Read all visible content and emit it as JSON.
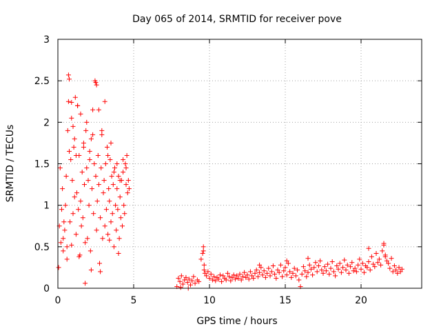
{
  "chart_data": {
    "type": "scatter",
    "title": "Day 065 of 2014, SRMTID for receiver pove",
    "xlabel": "GPS time / hours",
    "ylabel": "SRMTID / TECUs",
    "xlim": [
      0,
      24
    ],
    "ylim": [
      0,
      3
    ],
    "xticks": [
      0,
      5,
      10,
      15,
      20
    ],
    "xtick_labels": [
      "0",
      "5",
      "10",
      "15",
      "20"
    ],
    "yticks": [
      0,
      0.5,
      1,
      1.5,
      2,
      2.5,
      3
    ],
    "ytick_labels": [
      "0",
      "0.5",
      "1",
      "1.5",
      "2",
      "2.5",
      "3"
    ],
    "grid": true,
    "legend": "none",
    "marker": "plus",
    "color": "#ff0000",
    "series": [
      {
        "x": [
          0.05,
          0.1,
          0.15,
          0.2,
          0.25,
          0.3,
          0.35,
          0.4,
          0.45,
          0.5,
          0.55,
          0.6,
          0.65,
          0.7,
          0.75,
          0.8,
          0.85,
          0.9,
          0.95,
          1.0,
          1.05,
          1.1,
          1.15,
          1.2,
          1.25,
          1.3,
          1.35,
          1.4,
          1.45,
          1.5,
          1.55,
          1.6,
          1.65,
          1.7,
          1.75,
          1.8,
          1.85,
          1.9,
          1.95,
          2.0,
          2.05,
          2.1,
          2.15,
          2.2,
          2.25,
          2.3,
          2.35,
          2.4,
          2.45,
          2.5,
          2.55,
          2.6,
          2.65,
          2.7,
          2.75,
          2.8,
          2.85,
          2.9,
          2.95,
          3.0,
          3.05,
          3.1,
          3.15,
          3.2,
          3.25,
          3.3,
          3.35,
          3.4,
          3.45,
          3.5,
          3.55,
          3.6,
          3.65,
          3.7,
          3.75,
          3.8,
          3.85,
          3.9,
          3.95,
          4.0,
          4.05,
          4.1,
          4.15,
          4.2,
          4.25,
          4.3,
          4.35,
          4.4,
          4.45,
          4.5,
          4.55,
          4.6,
          4.65,
          4.7,
          0.35,
          0.7,
          0.75,
          0.9,
          1.0,
          1.1,
          1.2,
          1.3,
          1.5,
          1.7,
          1.9,
          2.1,
          2.3,
          2.5,
          2.55,
          2.7,
          2.9,
          3.1,
          3.3,
          3.5,
          3.7,
          3.9,
          4.1,
          4.3,
          4.5,
          1.8,
          2.2,
          0.9,
          3.4,
          4.0,
          0.6,
          1.4,
          2.8
        ],
        "y": [
          0.25,
          0.75,
          1.45,
          0.55,
          0.95,
          1.2,
          0.6,
          0.8,
          0.7,
          1.0,
          1.35,
          0.5,
          1.9,
          2.25,
          1.65,
          0.8,
          1.55,
          2.05,
          1.3,
          0.9,
          1.7,
          1.1,
          2.3,
          0.65,
          1.15,
          2.2,
          0.95,
          1.6,
          0.4,
          1.05,
          0.75,
          1.4,
          0.85,
          1.75,
          1.25,
          0.55,
          1.9,
          1.45,
          0.6,
          1.3,
          1.0,
          1.65,
          0.45,
          1.8,
          1.2,
          2.15,
          0.9,
          1.5,
          2.5,
          1.35,
          0.7,
          1.05,
          1.6,
          1.25,
          0.3,
          0.85,
          1.45,
          1.9,
          0.6,
          1.15,
          1.3,
          0.75,
          1.5,
          0.95,
          1.7,
          0.65,
          1.2,
          1.05,
          1.55,
          0.8,
          1.35,
          0.9,
          1.25,
          0.5,
          1.45,
          1.0,
          0.7,
          1.2,
          0.95,
          1.35,
          0.6,
          1.1,
          0.85,
          1.3,
          0.75,
          1.4,
          1.0,
          0.9,
          1.5,
          1.25,
          1.6,
          1.15,
          1.3,
          1.2,
          0.45,
          2.57,
          2.52,
          2.24,
          1.95,
          1.8,
          1.6,
          2.2,
          2.1,
          1.7,
          2.0,
          1.55,
          1.85,
          2.48,
          2.45,
          2.15,
          1.85,
          2.25,
          1.6,
          1.75,
          1.4,
          1.5,
          1.3,
          1.55,
          1.45,
          0.06,
          0.22,
          0.52,
          0.58,
          0.42,
          0.35,
          0.38,
          0.2
        ],
        "name": ""
      },
      {
        "x": [
          7.85,
          7.95,
          8.05,
          8.15,
          8.25,
          8.35,
          8.45,
          8.55,
          8.65,
          8.75,
          8.85,
          8.95,
          9.05,
          9.2,
          9.3,
          9.45,
          9.55,
          9.6,
          9.65,
          9.7,
          9.8,
          9.9,
          10.0,
          10.1,
          10.2,
          10.3,
          10.4,
          10.5,
          10.6,
          10.7,
          10.8,
          10.9,
          11.0,
          11.1,
          11.2,
          11.3,
          11.4,
          11.5,
          11.6,
          11.7,
          11.8,
          11.9,
          12.0,
          12.1,
          12.2,
          12.3,
          12.4,
          12.5,
          12.6,
          12.7,
          12.8,
          12.9,
          13.0,
          13.1,
          13.2,
          13.3,
          13.4,
          13.5,
          13.6,
          13.7,
          13.8,
          13.9,
          14.0,
          14.1,
          14.2,
          14.3,
          14.4,
          14.5,
          14.6,
          14.7,
          14.8,
          14.9,
          15.0,
          15.1,
          15.2,
          15.3,
          15.4,
          15.5,
          15.6,
          15.7,
          15.8,
          15.9,
          16.0,
          16.1,
          16.2,
          16.3,
          16.4,
          16.5,
          16.6,
          16.7,
          16.8,
          16.9,
          17.0,
          17.1,
          17.2,
          17.3,
          17.4,
          17.5,
          17.6,
          17.7,
          17.8,
          17.9,
          18.0,
          18.1,
          18.2,
          18.3,
          18.4,
          18.5,
          18.6,
          18.7,
          18.8,
          18.9,
          19.0,
          19.1,
          19.2,
          19.3,
          19.4,
          19.5,
          19.6,
          19.7,
          19.8,
          19.9,
          20.0,
          20.1,
          20.2,
          20.3,
          20.4,
          20.5,
          20.6,
          20.7,
          20.8,
          20.9,
          21.0,
          21.1,
          21.2,
          21.3,
          21.4,
          21.5,
          21.6,
          21.7,
          21.8,
          21.9,
          22.0,
          22.1,
          22.2,
          22.3,
          22.4,
          22.5,
          22.6,
          22.7,
          9.6,
          9.65,
          20.5,
          21.5,
          21.6,
          16.5,
          15.1,
          13.3,
          8.1,
          8.6
        ],
        "y": [
          0.02,
          0.12,
          0.08,
          0.15,
          0.05,
          0.1,
          0.13,
          0.07,
          0.11,
          0.04,
          0.09,
          0.14,
          0.06,
          0.1,
          0.08,
          0.35,
          0.42,
          0.5,
          0.22,
          0.18,
          0.15,
          0.2,
          0.12,
          0.17,
          0.1,
          0.14,
          0.09,
          0.13,
          0.11,
          0.16,
          0.08,
          0.15,
          0.12,
          0.1,
          0.18,
          0.14,
          0.09,
          0.13,
          0.16,
          0.11,
          0.15,
          0.12,
          0.17,
          0.1,
          0.14,
          0.19,
          0.13,
          0.16,
          0.11,
          0.2,
          0.15,
          0.12,
          0.18,
          0.22,
          0.14,
          0.19,
          0.25,
          0.16,
          0.21,
          0.13,
          0.18,
          0.24,
          0.15,
          0.2,
          0.27,
          0.17,
          0.12,
          0.22,
          0.19,
          0.28,
          0.14,
          0.21,
          0.25,
          0.16,
          0.3,
          0.2,
          0.13,
          0.18,
          0.24,
          0.15,
          0.22,
          0.1,
          0.02,
          0.17,
          0.26,
          0.21,
          0.14,
          0.19,
          0.28,
          0.23,
          0.16,
          0.25,
          0.31,
          0.2,
          0.27,
          0.33,
          0.22,
          0.18,
          0.26,
          0.21,
          0.29,
          0.17,
          0.24,
          0.32,
          0.2,
          0.15,
          0.27,
          0.23,
          0.3,
          0.19,
          0.25,
          0.34,
          0.22,
          0.28,
          0.18,
          0.26,
          0.31,
          0.21,
          0.24,
          0.2,
          0.28,
          0.35,
          0.23,
          0.3,
          0.19,
          0.27,
          0.25,
          0.32,
          0.22,
          0.38,
          0.29,
          0.26,
          0.42,
          0.31,
          0.35,
          0.28,
          0.45,
          0.52,
          0.4,
          0.33,
          0.3,
          0.24,
          0.36,
          0.2,
          0.27,
          0.22,
          0.18,
          0.25,
          0.2,
          0.23,
          0.45,
          0.28,
          0.48,
          0.54,
          0.38,
          0.36,
          0.33,
          0.28,
          0.01,
          0.0
        ],
        "name": ""
      }
    ]
  }
}
